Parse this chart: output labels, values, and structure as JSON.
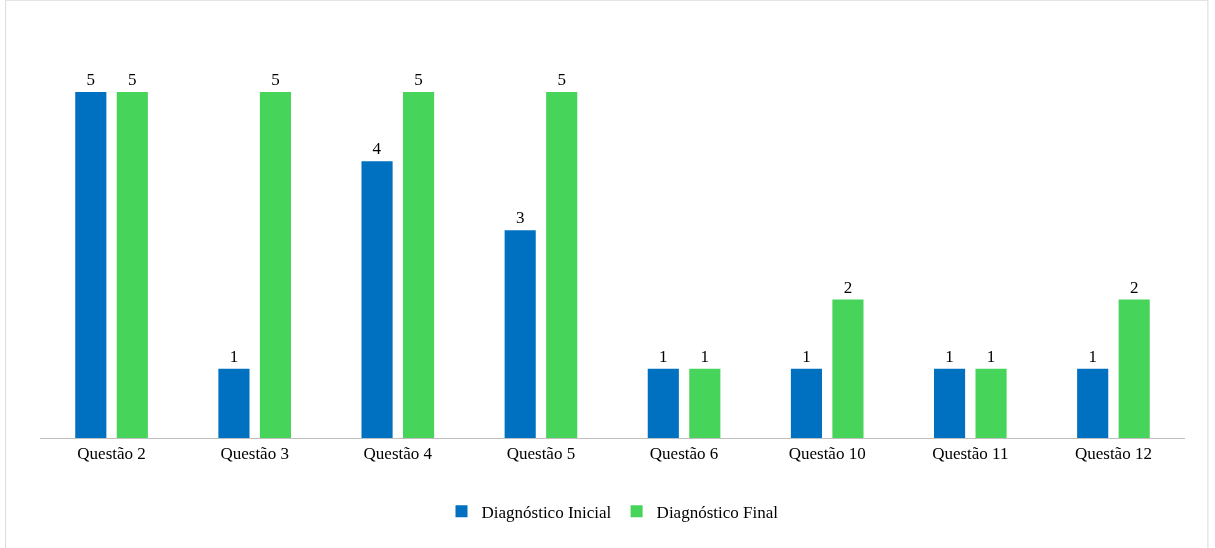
{
  "chart_data": {
    "type": "bar",
    "categories": [
      "Questão 2",
      "Questão 3",
      "Questão 4",
      "Questão 5",
      "Questão 6",
      "Questão 10",
      "Questão 11",
      "Questão 12"
    ],
    "series": [
      {
        "name": "Diagnóstico Inicial",
        "color": "#0070c0",
        "values": [
          5,
          1,
          4,
          3,
          1,
          1,
          1,
          1
        ]
      },
      {
        "name": "Diagnóstico Final",
        "color": "#47d45a",
        "values": [
          5,
          5,
          5,
          5,
          1,
          2,
          1,
          2
        ]
      }
    ],
    "data_labels": true,
    "legend": "bottom"
  }
}
